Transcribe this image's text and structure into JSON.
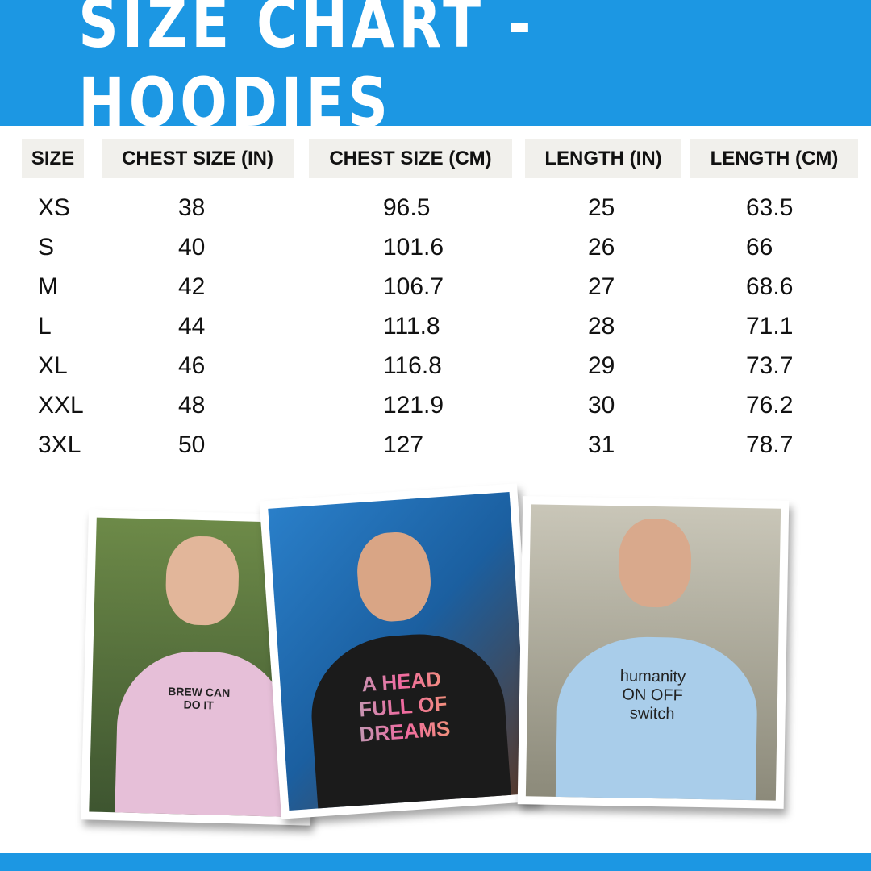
{
  "title": "SIZE CHART - HOODIES",
  "colors": {
    "accent": "#1c97e3",
    "header_cell": "#f1f0ec"
  },
  "table": {
    "headers": [
      "SIZE",
      "CHEST SIZE (IN)",
      "CHEST SIZE (CM)",
      "LENGTH (IN)",
      "LENGTH (CM)"
    ],
    "rows": [
      [
        "XS",
        "38",
        "96.5",
        "25",
        "63.5"
      ],
      [
        "S",
        "40",
        "101.6",
        "26",
        "66"
      ],
      [
        "M",
        "42",
        "106.7",
        "27",
        "68.6"
      ],
      [
        "L",
        "44",
        "111.8",
        "28",
        "71.1"
      ],
      [
        "XL",
        "46",
        "116.8",
        "29",
        "73.7"
      ],
      [
        "XXL",
        "48",
        "121.9",
        "30",
        "76.2"
      ],
      [
        "3XL",
        "50",
        "127",
        "31",
        "78.7"
      ]
    ]
  },
  "photos": [
    {
      "print": "BREW CAN DO IT",
      "hoodie_color": "#e6bfd8",
      "bg": "#4f6b35"
    },
    {
      "print": "A HEAD FULL OF DREAMS",
      "hoodie_color": "#1b1b1b",
      "bg": "#2a7fc9"
    },
    {
      "print": "humanity ON OFF switch",
      "hoodie_color": "#a9cdea",
      "bg": "#b9b29f"
    }
  ]
}
